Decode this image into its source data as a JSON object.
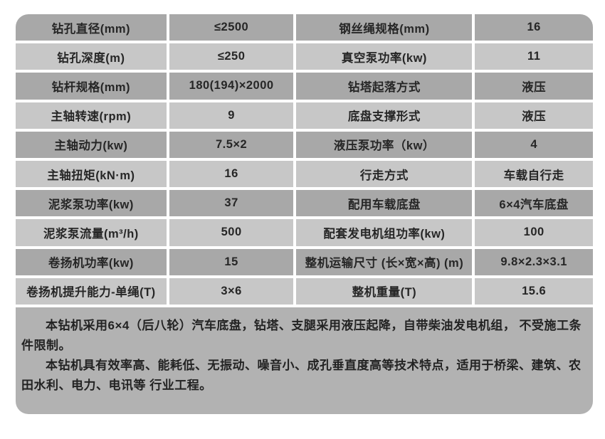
{
  "table": {
    "rows": [
      {
        "c0": "钻孔直径(mm)",
        "c1": "≤2500",
        "c2": "钢丝绳规格(mm)",
        "c3": "16"
      },
      {
        "c0": "钻孔深度(m)",
        "c1": "≤250",
        "c2": "真空泵功率(kw)",
        "c3": "11"
      },
      {
        "c0": "钻杆规格(mm)",
        "c1": "180(194)×2000",
        "c2": "钻塔起落方式",
        "c3": "液压"
      },
      {
        "c0": "主轴转速(rpm)",
        "c1": "9",
        "c2": "底盘支撑形式",
        "c3": "液压"
      },
      {
        "c0": "主轴动力(kw)",
        "c1": "7.5×2",
        "c2": "液压泵功率（kw）",
        "c3": "4"
      },
      {
        "c0": "主轴扭矩(kN·m)",
        "c1": "16",
        "c2": "行走方式",
        "c3": "车载自行走"
      },
      {
        "c0": "泥浆泵功率(kw)",
        "c1": "37",
        "c2": "配用车载底盘",
        "c3": "6×4汽车底盘"
      },
      {
        "c0": "泥浆泵流量(m³/h)",
        "c1": "500",
        "c2": "配套发电机组功率(kw)",
        "c3": "100"
      },
      {
        "c0": "卷扬机功率(kw)",
        "c1": "15",
        "c2": "整机运输尺寸 (长×宽×高) (m)",
        "c3": "9.8×2.3×3.1"
      },
      {
        "c0": "卷扬机提升能力-单绳(T)",
        "c1": "3×6",
        "c2": "整机重量(T)",
        "c3": "15.6"
      }
    ]
  },
  "notes": {
    "para1": "本钻机采用6×4（后八轮）汽车底盘，钻塔、支腿采用液压起降，自带柴油发电机组， 不受施工条件限制。",
    "para2": "本钻机具有效率高、能耗低、无振动、噪音小、成孔垂直度高等技术特点，适用于桥梁、建筑、农田水利、电力、电讯等 行业工程。"
  },
  "colors": {
    "row_dark": "#a8a8a8",
    "row_light": "#c7c7c7",
    "notes_background": "#b2b2b2",
    "separator": "#ffffff",
    "text": "#262626"
  }
}
